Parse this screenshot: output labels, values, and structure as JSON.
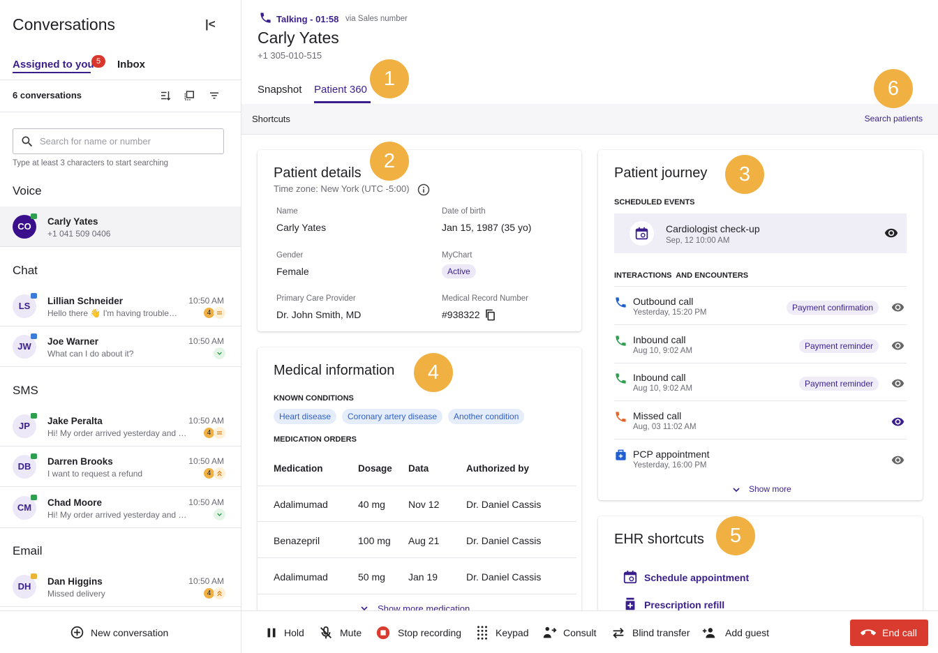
{
  "sidebar": {
    "title": "Conversations",
    "tabs": [
      "Assigned to you",
      "Inbox"
    ],
    "unread_badge": 5,
    "conversation_count": "6 conversations",
    "search_placeholder": "Search for name or number",
    "search_hint": "Type at least 3 characters to start searching",
    "sections": [
      {
        "title": "Voice",
        "items": [
          {
            "initials": "CO",
            "name": "Carly Yates",
            "preview": "+1 041 509 0406"
          }
        ]
      },
      {
        "title": "Chat",
        "items": [
          {
            "initials": "LS",
            "name": "Lillian Schneider",
            "preview": "Hello there 👋 I'm having trouble…",
            "time": "10:50 AM",
            "unread": 4,
            "priority": "equal"
          },
          {
            "initials": "JW",
            "name": "Joe Warner",
            "preview": "What can I do about it?",
            "time": "10:50 AM",
            "priority": "down"
          }
        ]
      },
      {
        "title": "SMS",
        "items": [
          {
            "initials": "JP",
            "name": "Jake Peralta",
            "preview": "Hi! My order arrived yesterday and …",
            "time": "10:50 AM",
            "unread": 4,
            "priority": "equal"
          },
          {
            "initials": "DB",
            "name": "Darren Brooks",
            "preview": "I want to request a refund",
            "time": "10:50 AM",
            "unread": 4,
            "priority": "up"
          },
          {
            "initials": "CM",
            "name": "Chad Moore",
            "preview": "Hi! My order arrived yesterday and …",
            "time": "10:50 AM",
            "priority": "down"
          }
        ]
      },
      {
        "title": "Email",
        "items": [
          {
            "initials": "DH",
            "name": "Dan Higgins",
            "preview": "Missed delivery",
            "time": "10:50 AM",
            "unread": 4,
            "priority": "up"
          }
        ]
      }
    ],
    "new_conversation": "New conversation"
  },
  "call": {
    "status": "Talking - 01:58",
    "via": "via Sales number",
    "name": "Carly Yates",
    "phone": "+1 305-010-515",
    "tabs": [
      "Snapshot",
      "Patient 360"
    ],
    "shortcuts_label": "Shortcuts",
    "search_patients": "Search patients"
  },
  "markers": [
    1,
    2,
    3,
    4,
    5,
    6
  ],
  "patient_details": {
    "title": "Patient details",
    "timezone": "Time zone: New York (UTC -5:00)",
    "fields": [
      {
        "label": "Name",
        "value": "Carly Yates"
      },
      {
        "label": "Date of birth",
        "value": "Jan 15, 1987 (35 yo)"
      },
      {
        "label": "Gender",
        "value": "Female"
      },
      {
        "label": "MyChart",
        "value": "Active"
      },
      {
        "label": "Primary Care  Provider",
        "value": "Dr. John Smith, MD"
      },
      {
        "label": "Medical Record Number",
        "value": "#938322"
      }
    ]
  },
  "medical_information": {
    "title": "Medical information",
    "conditions_label": "KNOWN CONDITIONS",
    "conditions": [
      "Heart disease",
      "Coronary artery disease",
      "Another condition"
    ],
    "orders_label": "MEDICATION ORDERS",
    "columns": [
      "Medication",
      "Dosage",
      "Data",
      "Authorized by"
    ],
    "rows": [
      [
        "Adalimumad",
        "40 mg",
        "Nov 12",
        "Dr. Daniel Cassis"
      ],
      [
        "Benazepril",
        "100 mg",
        "Aug 21",
        "Dr. Daniel Cassis"
      ],
      [
        "Adalimumad",
        "50 mg",
        "Jan 19",
        "Dr. Daniel Cassis"
      ]
    ],
    "show_more": "Show more medication"
  },
  "patient_journey": {
    "title": "Patient journey",
    "scheduled_label": "SCHEDULED EVENTS",
    "event": {
      "title": "Cardiologist check-up",
      "time": "Sep, 12 10:00 AM"
    },
    "interactions_label": "INTERACTIONS  AND ENCOUNTERS",
    "interactions": [
      {
        "type": "Outbound call",
        "time": "Yesterday, 15:20 PM",
        "tag": "Payment confirmation"
      },
      {
        "type": "Inbound call",
        "time": "Aug 10, 9:02 AM",
        "tag": "Payment reminder"
      },
      {
        "type": "Inbound call",
        "time": "Aug 10, 9:02 AM",
        "tag": "Payment reminder"
      },
      {
        "type": "Missed call",
        "time": "Aug, 03 11:02 AM"
      },
      {
        "type": "PCP appointment",
        "time": "Yesterday, 16:00 PM"
      }
    ],
    "show_more": "Show more"
  },
  "ehr_shortcuts": {
    "title": "EHR shortcuts",
    "items": [
      "Schedule appointment",
      "Prescription refill"
    ]
  },
  "toolbar": {
    "actions": [
      "Hold",
      "Mute",
      "Stop recording",
      "Keypad",
      "Consult",
      "Blind transfer",
      "Add guest"
    ],
    "end_call": "End call"
  }
}
